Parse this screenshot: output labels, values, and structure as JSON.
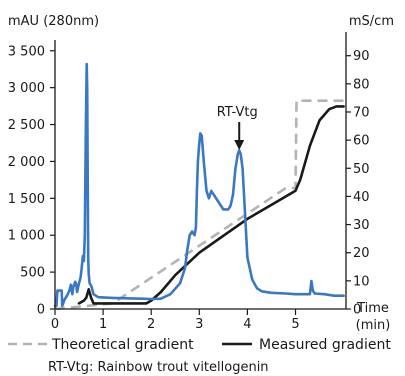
{
  "chart_data": {
    "type": "line",
    "left_axis": {
      "title": "mAU (280nm)",
      "ylim": [
        0,
        3700
      ],
      "ticks": [
        0,
        500,
        1000,
        1500,
        2000,
        2500,
        3000,
        3500
      ],
      "tick_labels": [
        "0",
        "500",
        "1 000",
        "1 500",
        "2 000",
        "2 500",
        "3 000",
        "3 500"
      ]
    },
    "right_axis": {
      "title": "mS/cm",
      "ylim": [
        0,
        97
      ],
      "ticks": [
        0,
        10,
        20,
        30,
        40,
        50,
        60,
        70,
        80,
        90
      ],
      "tick_labels": [
        "0",
        "10",
        "20",
        "30",
        "40",
        "50",
        "60",
        "70",
        "80",
        "90"
      ]
    },
    "x_axis": {
      "title_line1": "Time",
      "title_line2": "(min)",
      "xlim": [
        0,
        6.05
      ],
      "ticks": [
        0,
        1,
        2,
        3,
        4,
        5
      ],
      "tick_labels": [
        "0",
        "1",
        "2",
        "3",
        "4",
        "5"
      ]
    },
    "annotation": {
      "label": "RT-Vtg",
      "x": 3.83
    },
    "series": [
      {
        "name": "",
        "axis": "left",
        "color": "#3a78c3",
        "style": "solid",
        "x": [
          0,
          0.03,
          0.05,
          0.14,
          0.15,
          0.2,
          0.25,
          0.3,
          0.33,
          0.36,
          0.38,
          0.4,
          0.42,
          0.44,
          0.46,
          0.5,
          0.53,
          0.55,
          0.58,
          0.6,
          0.62,
          0.64,
          0.66,
          0.67,
          0.68,
          0.69,
          0.7,
          0.72,
          0.74,
          0.76,
          0.8,
          0.9,
          1.2,
          1.5,
          1.8,
          2.0,
          2.2,
          2.4,
          2.6,
          2.7,
          2.75,
          2.8,
          2.85,
          2.9,
          2.93,
          2.95,
          2.97,
          3.0,
          3.02,
          3.05,
          3.1,
          3.15,
          3.2,
          3.25,
          3.3,
          3.35,
          3.4,
          3.45,
          3.5,
          3.55,
          3.6,
          3.65,
          3.7,
          3.75,
          3.8,
          3.83,
          3.86,
          3.9,
          3.95,
          4.0,
          4.1,
          4.2,
          4.3,
          4.5,
          4.8,
          5.0,
          5.05,
          5.3,
          5.33,
          5.36,
          5.4,
          5.6,
          5.8,
          6.0
        ],
        "values": [
          40,
          40,
          250,
          250,
          40,
          130,
          180,
          250,
          330,
          200,
          300,
          330,
          370,
          330,
          230,
          350,
          420,
          530,
          720,
          650,
          1000,
          2400,
          3320,
          3000,
          1800,
          700,
          480,
          350,
          330,
          300,
          200,
          160,
          150,
          145,
          140,
          135,
          140,
          200,
          350,
          550,
          800,
          1000,
          1050,
          1000,
          1100,
          1600,
          2000,
          2250,
          2380,
          2350,
          1950,
          1600,
          1500,
          1600,
          1550,
          1500,
          1450,
          1400,
          1350,
          1350,
          1350,
          1400,
          1550,
          1900,
          2100,
          2150,
          2100,
          1900,
          1300,
          700,
          400,
          280,
          240,
          220,
          210,
          200,
          200,
          200,
          380,
          250,
          210,
          200,
          180,
          180
        ]
      },
      {
        "name": "Theoretical gradient",
        "axis": "right",
        "color": "#b3b3b3",
        "style": "dashed",
        "x": [
          0,
          1.2,
          4.8,
          5.0,
          5.02,
          6.0
        ],
        "values": [
          0,
          2,
          43,
          43,
          74,
          74
        ]
      },
      {
        "name": "Measured gradient",
        "axis": "right",
        "color": "#1a1a1a",
        "style": "solid",
        "x": [
          0.5,
          0.6,
          0.65,
          0.7,
          0.75,
          0.8,
          1.0,
          1.5,
          1.9,
          2.0,
          2.2,
          2.5,
          3.0,
          3.5,
          4.0,
          4.5,
          5.0,
          5.1,
          5.3,
          5.5,
          5.7,
          5.85,
          6.0
        ],
        "values": [
          2,
          3,
          4,
          7,
          4,
          2,
          2,
          2,
          2,
          3,
          6,
          12,
          20,
          26,
          32,
          37,
          42,
          46,
          58,
          67,
          71,
          72,
          72
        ]
      }
    ],
    "legend": {
      "placement": "bottom",
      "items": [
        {
          "label": "Theoretical gradient",
          "color": "#b3b3b3",
          "style": "dashed"
        },
        {
          "label": "Measured gradient",
          "color": "#1a1a1a",
          "style": "solid"
        }
      ]
    },
    "footnote": "RT-Vtg: Rainbow trout vitellogenin"
  }
}
